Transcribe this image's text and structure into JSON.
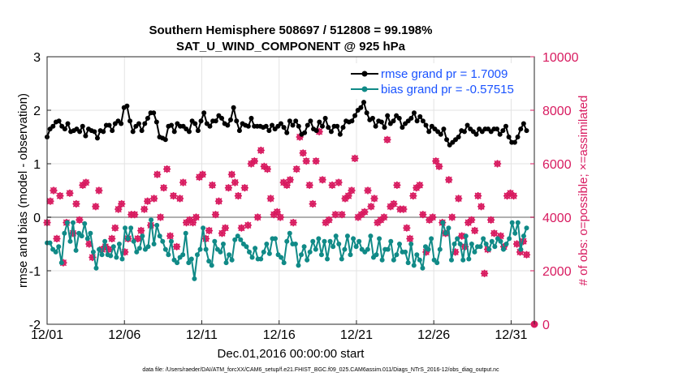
{
  "chart_data": {
    "type": "line",
    "title": "Southern Hemisphere 508697 / 512808 = 99.198%",
    "subtitle": "SAT_U_WIND_COMPONENT @ 925 hPa",
    "xlabel": "Dec.01,2016 00:00:00 start",
    "ylabel": "rmse and bias (model - observation)",
    "y2label": "# of obs: o=possible; ×=assimilated",
    "footnote": "data file: /Users/raeder/DAI/ATM_forcXX/CAM6_setup/f.e21.FHIST_BGC.f09_025.CAM6assim.011/Diags_NTrS_2016-12/obs_diag_output.nc",
    "xlim": [
      0,
      31.5
    ],
    "ylim": [
      -2,
      3
    ],
    "y2lim": [
      0,
      10000
    ],
    "x_tick_labels": [
      "12/01",
      "12/06",
      "12/11",
      "12/16",
      "12/21",
      "12/26",
      "12/31"
    ],
    "x_tick_values": [
      0,
      5,
      10,
      15,
      20,
      25,
      30
    ],
    "y_tick_labels": [
      "-2",
      "-1",
      "0",
      "1",
      "2",
      "3"
    ],
    "y_tick_values": [
      -2,
      -1,
      0,
      1,
      2,
      3
    ],
    "y2_tick_labels": [
      "0",
      "2000",
      "4000",
      "6000",
      "8000",
      "10000"
    ],
    "y2_tick_values": [
      0,
      2000,
      4000,
      6000,
      8000,
      10000
    ],
    "grid": true,
    "legend_position": "top-right",
    "colors": {
      "rmse": "#000000",
      "bias": "#108a87",
      "obs": "#d81b60",
      "zero_line": "#b0b0b0",
      "grid": "#e3e3e3"
    },
    "series": [
      {
        "name": "rmse grand pr = 1.7009",
        "color": "#000000",
        "values": [
          1.5,
          1.65,
          1.7,
          1.78,
          1.8,
          1.7,
          1.65,
          1.75,
          1.6,
          1.62,
          1.65,
          1.6,
          1.7,
          1.52,
          1.65,
          1.62,
          1.6,
          1.48,
          1.62,
          1.6,
          1.72,
          1.72,
          1.62,
          1.75,
          1.8,
          1.75,
          2.05,
          2.08,
          1.8,
          1.6,
          1.7,
          1.75,
          1.62,
          1.75,
          1.85,
          1.95,
          1.95,
          1.78,
          1.5,
          1.48,
          1.45,
          1.7,
          1.72,
          1.6,
          1.75,
          1.7,
          1.7,
          1.65,
          1.6,
          1.8,
          1.75,
          1.62,
          1.8,
          1.95,
          1.75,
          1.7,
          1.8,
          1.8,
          1.9,
          1.85,
          1.75,
          1.72,
          1.82,
          2.05,
          1.8,
          1.62,
          1.75,
          1.72,
          1.7,
          1.85,
          1.7,
          1.7,
          1.7,
          1.68,
          1.7,
          1.62,
          1.72,
          1.65,
          1.7,
          1.75,
          1.68,
          1.58,
          1.8,
          1.72,
          1.8,
          1.7,
          1.55,
          1.58,
          1.72,
          1.8,
          1.65,
          1.62,
          1.78,
          1.7,
          1.85,
          1.68,
          1.6,
          1.7,
          1.7,
          1.55,
          1.68,
          1.8,
          1.78,
          1.8,
          1.9,
          2.0,
          2.05,
          2.15,
          1.95,
          1.82,
          1.85,
          1.7,
          1.8,
          1.78,
          1.68,
          1.9,
          1.75,
          1.8,
          1.9,
          1.85,
          1.68,
          1.75,
          1.8,
          1.85,
          1.95,
          1.8,
          1.88,
          1.8,
          1.72,
          1.6,
          1.7,
          1.65,
          1.6,
          1.55,
          1.65,
          1.45,
          1.35,
          1.4,
          1.45,
          1.5,
          1.62,
          1.6,
          1.72,
          1.65,
          1.6,
          1.55,
          1.65,
          1.6,
          1.65,
          1.65,
          1.6,
          1.65,
          1.65,
          1.55,
          1.62,
          1.7,
          1.5,
          1.4,
          1.4,
          1.5,
          1.65,
          1.75,
          1.62
        ]
      },
      {
        "name": "bias grand pr = -0.57515",
        "color": "#108a87",
        "values": [
          -0.48,
          -0.48,
          -0.6,
          -0.65,
          -0.55,
          -0.85,
          -0.3,
          -0.1,
          -0.45,
          -0.1,
          -0.62,
          -0.3,
          -0.35,
          -0.12,
          -0.4,
          -0.3,
          -0.65,
          -0.95,
          -0.6,
          -0.7,
          -0.45,
          -0.7,
          -0.72,
          -0.55,
          -0.75,
          -0.5,
          -0.78,
          -0.2,
          -0.4,
          -0.2,
          -0.45,
          -0.65,
          -0.58,
          -0.35,
          -0.6,
          -0.55,
          -0.05,
          -0.5,
          -0.15,
          -0.35,
          -0.45,
          -0.6,
          -0.7,
          -0.45,
          -0.8,
          -0.85,
          -0.75,
          -0.7,
          -0.3,
          -0.85,
          -0.78,
          -1.15,
          -0.7,
          -0.6,
          -0.2,
          -0.6,
          -0.82,
          -0.9,
          -0.45,
          -0.6,
          -0.65,
          -0.5,
          -0.85,
          -0.7,
          -0.8,
          -0.42,
          -0.35,
          -0.42,
          -0.5,
          -0.55,
          -0.65,
          -0.75,
          -0.58,
          -0.78,
          -0.78,
          -0.65,
          -0.5,
          -0.68,
          -0.4,
          -0.4,
          -0.7,
          -0.75,
          -0.85,
          -0.45,
          -0.3,
          -0.5,
          -0.5,
          -0.9,
          -0.7,
          -0.55,
          -0.8,
          -0.65,
          -0.45,
          -0.6,
          -0.4,
          -0.7,
          -0.45,
          -0.78,
          -0.45,
          -0.55,
          -0.35,
          -0.5,
          -0.78,
          -0.6,
          -0.35,
          -0.7,
          -0.4,
          -0.55,
          -0.45,
          -0.6,
          -0.65,
          -0.6,
          -0.35,
          -0.75,
          -0.7,
          -0.4,
          -0.8,
          -0.6,
          -0.6,
          -0.45,
          -0.8,
          -0.7,
          -0.5,
          -0.65,
          -0.65,
          -0.85,
          -0.5,
          -0.9,
          -0.7,
          -0.8,
          -0.95,
          -0.55,
          -0.6,
          -0.4,
          -0.8,
          -0.85,
          -0.6,
          -0.1,
          -0.3,
          -0.2,
          -0.8,
          -0.5,
          -0.4,
          -0.5,
          -0.8,
          -0.35,
          -0.78,
          -0.5,
          -0.65,
          -0.55,
          -0.55,
          -0.4,
          -0.5,
          -0.6,
          -0.45,
          -0.55,
          -0.4,
          -0.45,
          -0.6,
          -0.5,
          -0.4,
          -0.1,
          -0.3,
          -0.1,
          -0.6,
          -0.35,
          -0.2
        ]
      },
      {
        "name": "# of obs",
        "color": "#d81b60",
        "values": [
          3800,
          4600,
          5000,
          3200,
          4800,
          2300,
          3800,
          4900,
          3400,
          4500,
          3900,
          5200,
          5300,
          3000,
          2500,
          4400,
          5000,
          2800,
          2900,
          2800,
          3200,
          3600,
          4300,
          4500,
          2700,
          3200,
          4100,
          4100,
          3200,
          3500,
          4300,
          4600,
          3700,
          4700,
          5600,
          4000,
          5100,
          5800,
          3300,
          4800,
          2900,
          4700,
          5300,
          3800,
          3900,
          3800,
          4000,
          5500,
          5600,
          3200,
          3500,
          5200,
          4100,
          4600,
          3400,
          3600,
          5100,
          5600,
          5300,
          4800,
          3600,
          5100,
          3700,
          6000,
          6100,
          4000,
          6500,
          5900,
          5800,
          4700,
          4100,
          4200,
          4000,
          5300,
          5200,
          5400,
          3800,
          5800,
          7000,
          6400,
          6100,
          5200,
          4500,
          6100,
          7200,
          5400,
          3800,
          3900,
          5200,
          4100,
          5300,
          4100,
          4700,
          4800,
          5000,
          6200,
          4000,
          4100,
          4200,
          5000,
          4400,
          4700,
          3800,
          3900,
          4000,
          6900,
          4400,
          4500,
          5200,
          4300,
          4300,
          3600,
          3200,
          4800,
          5100,
          5200,
          4100,
          2700,
          3900,
          4000,
          6100,
          5900,
          3800,
          3400,
          5400,
          4000,
          2700,
          4700,
          3300,
          2900,
          3800,
          3900,
          3500,
          4800,
          4400,
          1900,
          2800,
          3900,
          3400,
          6000,
          3300,
          2900,
          4800,
          4900,
          4800,
          3000,
          2700,
          3100,
          2600
        ]
      },
      {
        "name": "# of obs (last point)",
        "color": "#d81b60",
        "values": [
          0
        ]
      }
    ]
  }
}
